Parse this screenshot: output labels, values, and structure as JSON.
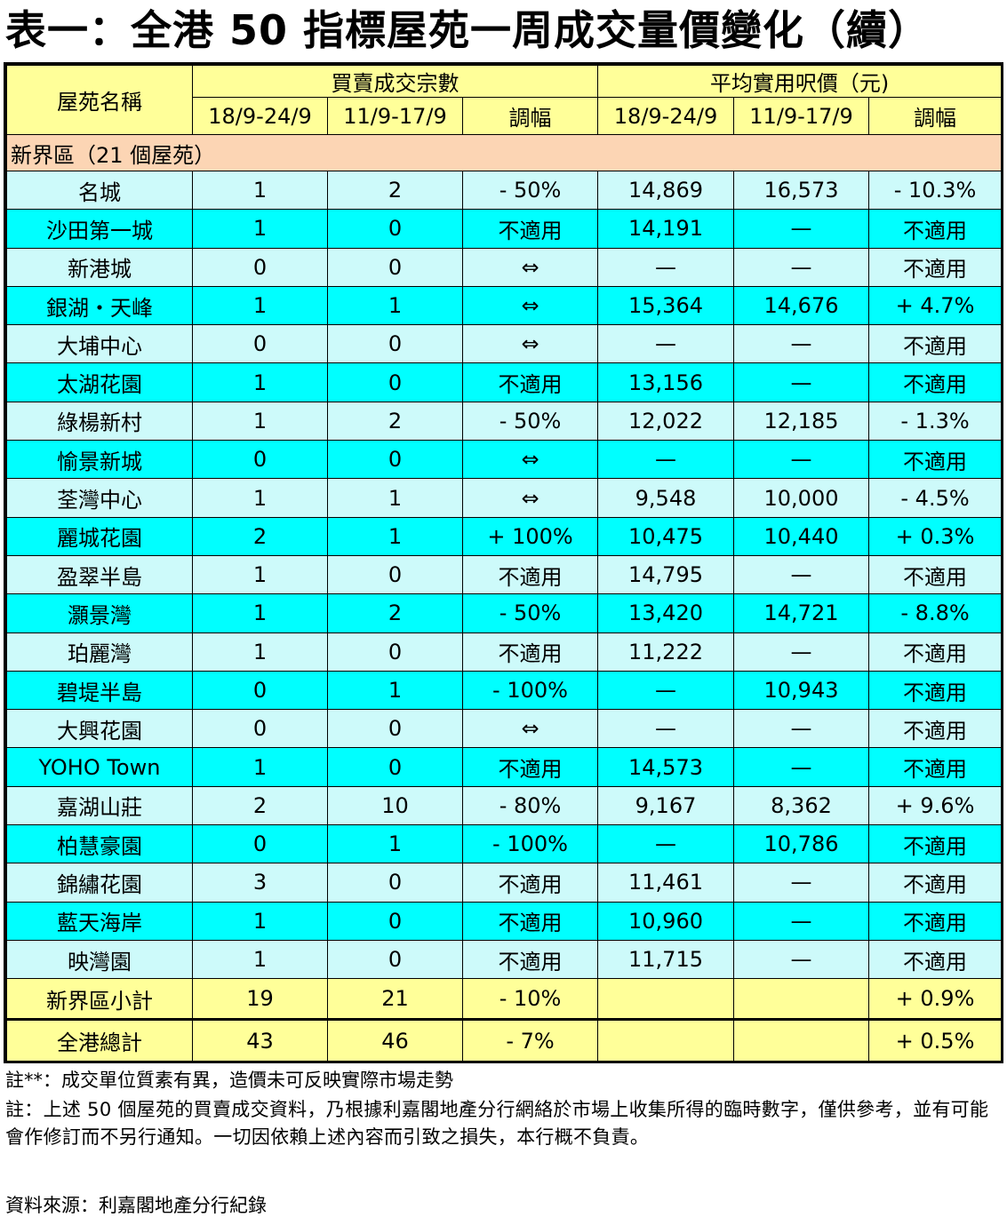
{
  "title": "表一：全港 50 指標屋苑一周成交量價變化（續）",
  "headers": {
    "estate": "屋苑名稱",
    "volume_group": "買賣成交宗數",
    "price_group": "平均實用呎價（元)",
    "week_current": "18/9-24/9",
    "week_previous": "11/9-17/9",
    "change": "調幅"
  },
  "region_label": "新界區（21 個屋苑）",
  "rows": [
    {
      "name": "名城",
      "vol_cur": "1",
      "vol_prev": "2",
      "vol_chg": "- 50%",
      "price_cur": "14,869",
      "price_prev": "16,573",
      "price_chg": "- 10.3%"
    },
    {
      "name": "沙田第一城",
      "vol_cur": "1",
      "vol_prev": "0",
      "vol_chg": "不適用",
      "price_cur": "14,191",
      "price_prev": "—",
      "price_chg": "不適用"
    },
    {
      "name": "新港城",
      "vol_cur": "0",
      "vol_prev": "0",
      "vol_chg": "⇔",
      "price_cur": "—",
      "price_prev": "—",
      "price_chg": "不適用"
    },
    {
      "name": "銀湖・天峰",
      "vol_cur": "1",
      "vol_prev": "1",
      "vol_chg": "⇔",
      "price_cur": "15,364",
      "price_prev": "14,676",
      "price_chg": "+ 4.7%"
    },
    {
      "name": "大埔中心",
      "vol_cur": "0",
      "vol_prev": "0",
      "vol_chg": "⇔",
      "price_cur": "—",
      "price_prev": "—",
      "price_chg": "不適用"
    },
    {
      "name": "太湖花園",
      "vol_cur": "1",
      "vol_prev": "0",
      "vol_chg": "不適用",
      "price_cur": "13,156",
      "price_prev": "—",
      "price_chg": "不適用"
    },
    {
      "name": "綠楊新村",
      "vol_cur": "1",
      "vol_prev": "2",
      "vol_chg": "- 50%",
      "price_cur": "12,022",
      "price_prev": "12,185",
      "price_chg": "- 1.3%"
    },
    {
      "name": "愉景新城",
      "vol_cur": "0",
      "vol_prev": "0",
      "vol_chg": "⇔",
      "price_cur": "—",
      "price_prev": "—",
      "price_chg": "不適用"
    },
    {
      "name": "荃灣中心",
      "vol_cur": "1",
      "vol_prev": "1",
      "vol_chg": "⇔",
      "price_cur": "9,548",
      "price_prev": "10,000",
      "price_chg": "- 4.5%"
    },
    {
      "name": "麗城花園",
      "vol_cur": "2",
      "vol_prev": "1",
      "vol_chg": "+ 100%",
      "price_cur": "10,475",
      "price_prev": "10,440",
      "price_chg": "+ 0.3%"
    },
    {
      "name": "盈翠半島",
      "vol_cur": "1",
      "vol_prev": "0",
      "vol_chg": "不適用",
      "price_cur": "14,795",
      "price_prev": "—",
      "price_chg": "不適用"
    },
    {
      "name": "灝景灣",
      "vol_cur": "1",
      "vol_prev": "2",
      "vol_chg": "- 50%",
      "price_cur": "13,420",
      "price_prev": "14,721",
      "price_chg": "- 8.8%"
    },
    {
      "name": "珀麗灣",
      "vol_cur": "1",
      "vol_prev": "0",
      "vol_chg": "不適用",
      "price_cur": "11,222",
      "price_prev": "—",
      "price_chg": "不適用"
    },
    {
      "name": "碧堤半島",
      "vol_cur": "0",
      "vol_prev": "1",
      "vol_chg": "- 100%",
      "price_cur": "—",
      "price_prev": "10,943",
      "price_chg": "不適用"
    },
    {
      "name": "大興花園",
      "vol_cur": "0",
      "vol_prev": "0",
      "vol_chg": "⇔",
      "price_cur": "—",
      "price_prev": "—",
      "price_chg": "不適用"
    },
    {
      "name": "YOHO Town",
      "vol_cur": "1",
      "vol_prev": "0",
      "vol_chg": "不適用",
      "price_cur": "14,573",
      "price_prev": "—",
      "price_chg": "不適用"
    },
    {
      "name": "嘉湖山莊",
      "vol_cur": "2",
      "vol_prev": "10",
      "vol_chg": "- 80%",
      "price_cur": "9,167",
      "price_prev": "8,362",
      "price_chg": "+ 9.6%"
    },
    {
      "name": "柏慧豪園",
      "vol_cur": "0",
      "vol_prev": "1",
      "vol_chg": "- 100%",
      "price_cur": "—",
      "price_prev": "10,786",
      "price_chg": "不適用"
    },
    {
      "name": "錦繡花園",
      "vol_cur": "3",
      "vol_prev": "0",
      "vol_chg": "不適用",
      "price_cur": "11,461",
      "price_prev": "—",
      "price_chg": "不適用"
    },
    {
      "name": "藍天海岸",
      "vol_cur": "1",
      "vol_prev": "0",
      "vol_chg": "不適用",
      "price_cur": "10,960",
      "price_prev": "—",
      "price_chg": "不適用"
    },
    {
      "name": "映灣園",
      "vol_cur": "1",
      "vol_prev": "0",
      "vol_chg": "不適用",
      "price_cur": "11,715",
      "price_prev": "—",
      "price_chg": "不適用"
    }
  ],
  "subtotal": {
    "name": "新界區小計",
    "vol_cur": "19",
    "vol_prev": "21",
    "vol_chg": "- 10%",
    "price_chg": "+ 0.9%"
  },
  "total": {
    "name": "全港總計",
    "vol_cur": "43",
    "vol_prev": "46",
    "vol_chg": "- 7%",
    "price_chg": "+ 0.5%"
  },
  "notes": {
    "note1": "註**：成交單位質素有異，造價未可反映實際市場走勢",
    "note2": "註：上述 50 個屋苑的買賣成交資料，乃根據利嘉閣地產分行網絡於市場上收集所得的臨時數字，僅供參考，並有可能會作修訂而不另行通知。一切因依賴上述內容而引致之損失，本行概不負責。",
    "source": "資料來源：利嘉閣地產分行紀錄"
  },
  "colors": {
    "header_bg": "#ffff99",
    "region_bg": "#fcd5b4",
    "row_light": "#cdfafa",
    "row_cyan": "#00ffff"
  }
}
